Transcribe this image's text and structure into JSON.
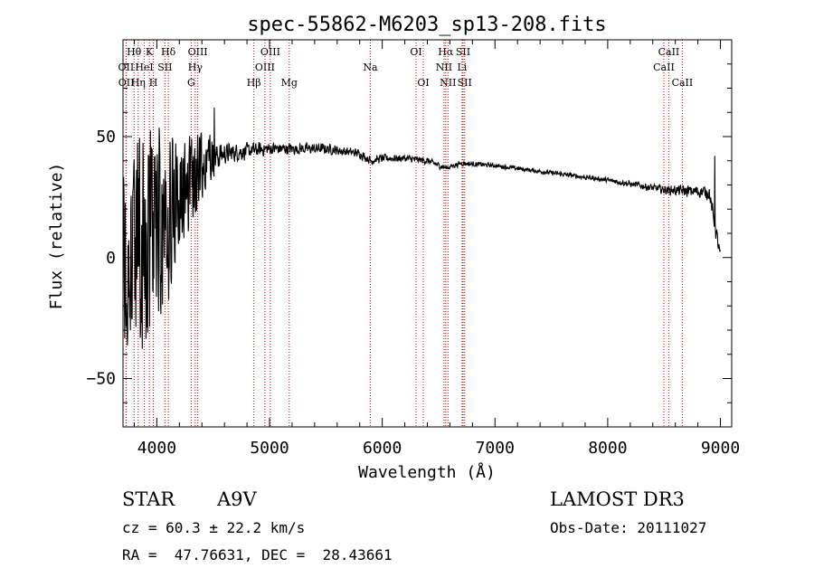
{
  "chart_data": {
    "type": "line",
    "title": "spec-55862-M6203_sp13-208.fits",
    "xlabel": "Wavelength (Å)",
    "ylabel": "Flux (relative)",
    "xlim": [
      3700,
      9100
    ],
    "ylim": [
      -70,
      90
    ],
    "xticks": [
      4000,
      5000,
      6000,
      7000,
      8000,
      9000
    ],
    "xminor": 200,
    "yticks": [
      -50,
      0,
      50
    ],
    "yminor": 10,
    "series": [
      {
        "name": "spectrum",
        "anchors": [
          [
            3700,
            0
          ],
          [
            3800,
            5
          ],
          [
            3900,
            8
          ],
          [
            4000,
            14
          ],
          [
            4100,
            17
          ],
          [
            4200,
            24
          ],
          [
            4300,
            31
          ],
          [
            4400,
            37
          ],
          [
            4500,
            41
          ],
          [
            4600,
            43
          ],
          [
            4800,
            44
          ],
          [
            5000,
            45
          ],
          [
            5200,
            45
          ],
          [
            5500,
            45
          ],
          [
            5800,
            43
          ],
          [
            5900,
            40
          ],
          [
            6000,
            41
          ],
          [
            6200,
            41
          ],
          [
            6400,
            40
          ],
          [
            6563,
            37
          ],
          [
            6700,
            39
          ],
          [
            7000,
            38
          ],
          [
            7500,
            35
          ],
          [
            8000,
            32
          ],
          [
            8500,
            28
          ],
          [
            8900,
            27
          ],
          [
            9000,
            0
          ]
        ],
        "noise": [
          [
            3700,
            32
          ],
          [
            3900,
            38
          ],
          [
            4000,
            34
          ],
          [
            4200,
            22
          ],
          [
            4400,
            12
          ],
          [
            4600,
            5
          ],
          [
            5000,
            3
          ],
          [
            6000,
            2
          ],
          [
            7000,
            1
          ],
          [
            8000,
            1.2
          ],
          [
            8500,
            2
          ],
          [
            9000,
            4
          ]
        ],
        "spikes": [
          [
            4510,
            62
          ],
          [
            8950,
            42
          ]
        ]
      }
    ],
    "spectral_lines": [
      {
        "label": "Hθ",
        "wavelength": 3798,
        "row": 0
      },
      {
        "label": "OII",
        "wavelength": 3727,
        "row": 1
      },
      {
        "label": "OII",
        "wavelength": 3729,
        "row": 2
      },
      {
        "label": "K",
        "wavelength": 3934,
        "row": 0
      },
      {
        "label": "HeI",
        "wavelength": 3889,
        "row": 1
      },
      {
        "label": "Hη",
        "wavelength": 3835,
        "row": 2
      },
      {
        "label": "SII",
        "wavelength": 4072,
        "row": 1
      },
      {
        "label": "H",
        "wavelength": 3969,
        "row": 2
      },
      {
        "label": "Hδ",
        "wavelength": 4102,
        "row": 0
      },
      {
        "label": "OIII",
        "wavelength": 4363,
        "row": 0
      },
      {
        "label": "Hγ",
        "wavelength": 4341,
        "row": 1
      },
      {
        "label": "G",
        "wavelength": 4305,
        "row": 2
      },
      {
        "label": "OIII",
        "wavelength": 5007,
        "row": 0
      },
      {
        "label": "OIII",
        "wavelength": 4959,
        "row": 1
      },
      {
        "label": "Hβ",
        "wavelength": 4861,
        "row": 2
      },
      {
        "label": "Mg",
        "wavelength": 5175,
        "row": 2
      },
      {
        "label": "Na",
        "wavelength": 5894,
        "row": 1
      },
      {
        "label": "OI",
        "wavelength": 6300,
        "row": 0
      },
      {
        "label": "OI",
        "wavelength": 6364,
        "row": 2
      },
      {
        "label": "Hα",
        "wavelength": 6563,
        "row": 0
      },
      {
        "label": "NII",
        "wavelength": 6548,
        "row": 1
      },
      {
        "label": "NII",
        "wavelength": 6583,
        "row": 2
      },
      {
        "label": "SII",
        "wavelength": 6717,
        "row": 0
      },
      {
        "label": "Li",
        "wavelength": 6708,
        "row": 1
      },
      {
        "label": "SII",
        "wavelength": 6731,
        "row": 2
      },
      {
        "label": "CaII",
        "wavelength": 8542,
        "row": 0
      },
      {
        "label": "CaII",
        "wavelength": 8498,
        "row": 1
      },
      {
        "label": "CaII",
        "wavelength": 8662,
        "row": 2
      }
    ]
  },
  "info": {
    "class": "STAR",
    "subclass": "A9V",
    "survey": "LAMOST DR3",
    "cz": "cz = 60.3 ± 22.2 km/s",
    "obs_date": "Obs-Date: 20111027",
    "coords": "RA =  47.76631, DEC =  28.43661"
  },
  "colors": {
    "axis": "#000000",
    "spectrum": "#000000",
    "lines": "#c00000"
  }
}
